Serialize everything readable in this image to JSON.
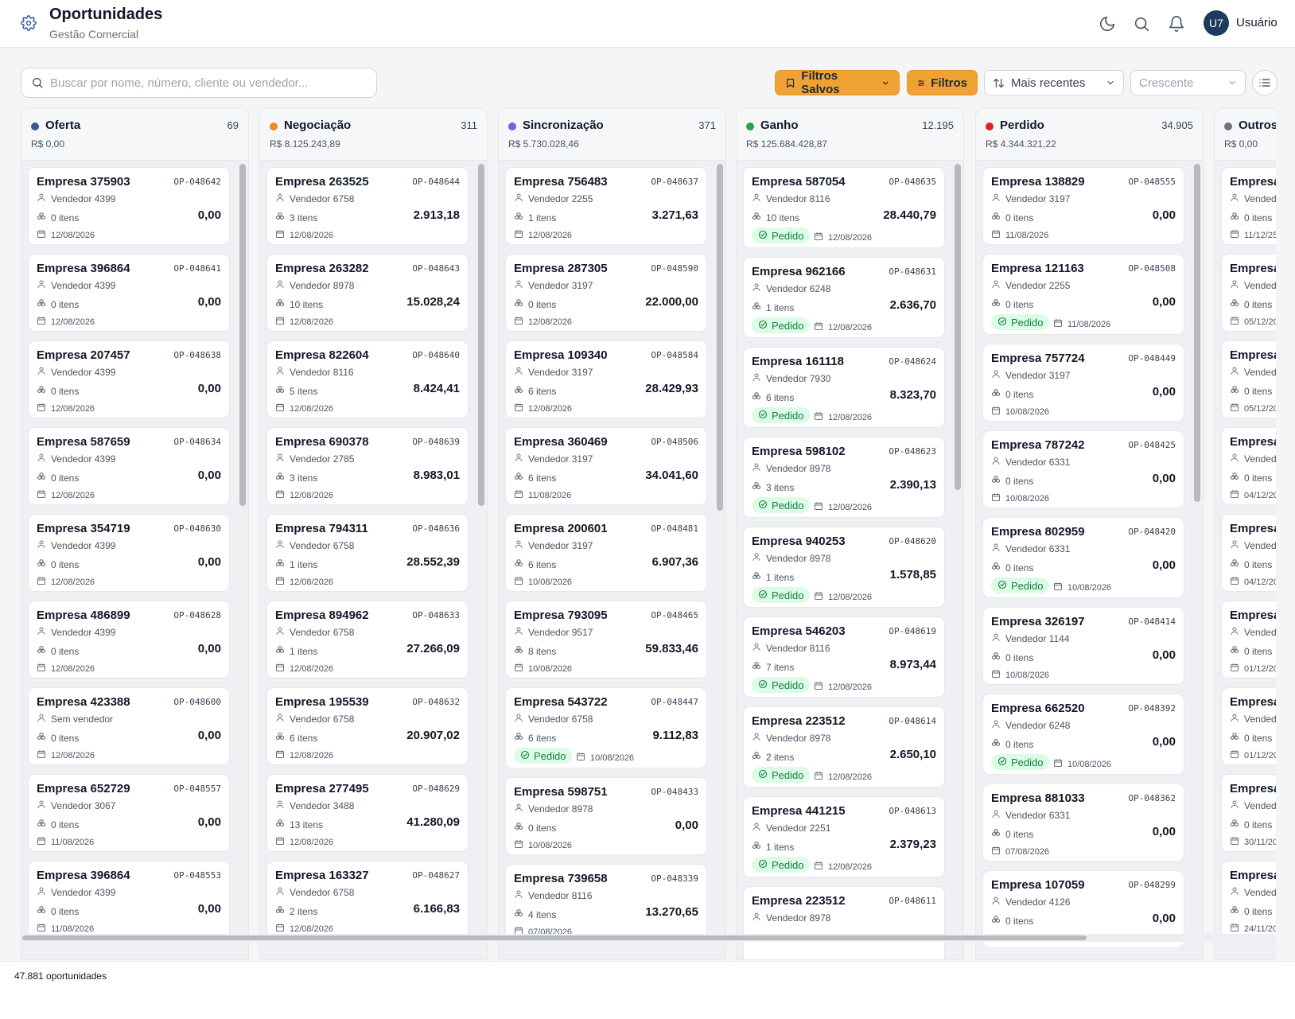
{
  "header": {
    "title": "Oportunidades",
    "subtitle": "Gestão Comercial",
    "user_initials": "U7",
    "user_name": "Usuário"
  },
  "toolbar": {
    "search_placeholder": "Buscar por nome, número, cliente ou vendedor...",
    "saved_filters_label": "Filtros Salvos",
    "filters_label": "Filtros",
    "sort_label": "Mais recentes",
    "order_label": "Crescente"
  },
  "colors": {
    "accent": "#f1a234",
    "badge_bg": "#dcfce7",
    "badge_text": "#15803d"
  },
  "columns": [
    {
      "name": "Oferta",
      "count": "69",
      "total": "R$ 0,00",
      "color": "#3b5b8a",
      "cards": [
        {
          "name": "Empresa 375903",
          "code": "OP-048642",
          "vendor": "Vendedor 4399",
          "items": "0 itens",
          "value": "0,00",
          "date": "12/08/2026"
        },
        {
          "name": "Empresa 396864",
          "code": "OP-048641",
          "vendor": "Vendedor 4399",
          "items": "0 itens",
          "value": "0,00",
          "date": "12/08/2026"
        },
        {
          "name": "Empresa 207457",
          "code": "OP-048638",
          "vendor": "Vendedor 4399",
          "items": "0 itens",
          "value": "0,00",
          "date": "12/08/2026"
        },
        {
          "name": "Empresa 587659",
          "code": "OP-048634",
          "vendor": "Vendedor 4399",
          "items": "0 itens",
          "value": "0,00",
          "date": "12/08/2026"
        },
        {
          "name": "Empresa 354719",
          "code": "OP-048630",
          "vendor": "Vendedor 4399",
          "items": "0 itens",
          "value": "0,00",
          "date": "12/08/2026"
        },
        {
          "name": "Empresa 486899",
          "code": "OP-048628",
          "vendor": "Vendedor 4399",
          "items": "0 itens",
          "value": "0,00",
          "date": "12/08/2026"
        },
        {
          "name": "Empresa 423388",
          "code": "OP-048600",
          "vendor": "Sem vendedor",
          "items": "0 itens",
          "value": "0,00",
          "date": "12/08/2026"
        },
        {
          "name": "Empresa 652729",
          "code": "OP-048557",
          "vendor": "Vendedor 3067",
          "items": "0 itens",
          "value": "0,00",
          "date": "11/08/2026"
        },
        {
          "name": "Empresa 396864",
          "code": "OP-048553",
          "vendor": "Vendedor 4399",
          "items": "0 itens",
          "value": "0,00",
          "date": "11/08/2026"
        }
      ]
    },
    {
      "name": "Negociação",
      "count": "311",
      "total": "R$ 8.125.243,89",
      "color": "#f08a24",
      "cards": [
        {
          "name": "Empresa 263525",
          "code": "OP-048644",
          "vendor": "Vendedor 6758",
          "items": "3 itens",
          "value": "2.913,18",
          "date": "12/08/2026"
        },
        {
          "name": "Empresa 263282",
          "code": "OP-048643",
          "vendor": "Vendedor 8978",
          "items": "10 itens",
          "value": "15.028,24",
          "date": "12/08/2026"
        },
        {
          "name": "Empresa 822604",
          "code": "OP-048640",
          "vendor": "Vendedor 8116",
          "items": "5 itens",
          "value": "8.424,41",
          "date": "12/08/2026"
        },
        {
          "name": "Empresa 690378",
          "code": "OP-048639",
          "vendor": "Vendedor 2785",
          "items": "3 itens",
          "value": "8.983,01",
          "date": "12/08/2026"
        },
        {
          "name": "Empresa 794311",
          "code": "OP-048636",
          "vendor": "Vendedor 6758",
          "items": "1 itens",
          "value": "28.552,39",
          "date": "12/08/2026"
        },
        {
          "name": "Empresa 894962",
          "code": "OP-048633",
          "vendor": "Vendedor 6758",
          "items": "1 itens",
          "value": "27.266,09",
          "date": "12/08/2026"
        },
        {
          "name": "Empresa 195539",
          "code": "OP-048632",
          "vendor": "Vendedor 6758",
          "items": "6 itens",
          "value": "20.907,02",
          "date": "12/08/2026"
        },
        {
          "name": "Empresa 277495",
          "code": "OP-048629",
          "vendor": "Vendedor 3488",
          "items": "13 itens",
          "value": "41.280,09",
          "date": "12/08/2026"
        },
        {
          "name": "Empresa 163327",
          "code": "OP-048627",
          "vendor": "Vendedor 6758",
          "items": "2 itens",
          "value": "6.166,83",
          "date": "12/08/2026"
        }
      ]
    },
    {
      "name": "Sincronização",
      "count": "371",
      "total": "R$ 5.730.028,46",
      "color": "#7c5ce8",
      "cards": [
        {
          "name": "Empresa 756483",
          "code": "OP-048637",
          "vendor": "Vendedor 2255",
          "items": "1 itens",
          "value": "3.271,63",
          "date": "12/08/2026"
        },
        {
          "name": "Empresa 287305",
          "code": "OP-048590",
          "vendor": "Vendedor 3197",
          "items": "0 itens",
          "value": "22.000,00",
          "date": "12/08/2026"
        },
        {
          "name": "Empresa 109340",
          "code": "OP-048584",
          "vendor": "Vendedor 3197",
          "items": "6 itens",
          "value": "28.429,93",
          "date": "12/08/2026"
        },
        {
          "name": "Empresa 360469",
          "code": "OP-048506",
          "vendor": "Vendedor 3197",
          "items": "6 itens",
          "value": "34.041,60",
          "date": "11/08/2026"
        },
        {
          "name": "Empresa 200601",
          "code": "OP-048481",
          "vendor": "Vendedor 3197",
          "items": "6 itens",
          "value": "6.907,36",
          "date": "10/08/2026"
        },
        {
          "name": "Empresa 793095",
          "code": "OP-048465",
          "vendor": "Vendedor 9517",
          "items": "8 itens",
          "value": "59.833,46",
          "date": "10/08/2026"
        },
        {
          "name": "Empresa 543722",
          "code": "OP-048447",
          "vendor": "Vendedor 6758",
          "items": "6 itens",
          "value": "9.112,83",
          "date": "10/08/2026",
          "badge": "Pedido"
        },
        {
          "name": "Empresa 598751",
          "code": "OP-048433",
          "vendor": "Vendedor 8978",
          "items": "0 itens",
          "value": "0,00",
          "date": "10/08/2026"
        },
        {
          "name": "Empresa 739658",
          "code": "OP-048339",
          "vendor": "Vendedor 8116",
          "items": "4 itens",
          "value": "13.270,65",
          "date": "07/08/2026"
        }
      ]
    },
    {
      "name": "Ganho",
      "count": "12.195",
      "total": "R$ 125.684.428,87",
      "color": "#22a745",
      "cards": [
        {
          "name": "Empresa 587054",
          "code": "OP-048635",
          "vendor": "Vendedor 8116",
          "items": "10 itens",
          "value": "28.440,79",
          "date": "12/08/2026",
          "badge": "Pedido"
        },
        {
          "name": "Empresa 962166",
          "code": "OP-048631",
          "vendor": "Vendedor 6248",
          "items": "1 itens",
          "value": "2.636,70",
          "date": "12/08/2026",
          "badge": "Pedido"
        },
        {
          "name": "Empresa 161118",
          "code": "OP-048624",
          "vendor": "Vendedor 7930",
          "items": "6 itens",
          "value": "8.323,70",
          "date": "12/08/2026",
          "badge": "Pedido"
        },
        {
          "name": "Empresa 598102",
          "code": "OP-048623",
          "vendor": "Vendedor 8978",
          "items": "3 itens",
          "value": "2.390,13",
          "date": "12/08/2026",
          "badge": "Pedido"
        },
        {
          "name": "Empresa 940253",
          "code": "OP-048620",
          "vendor": "Vendedor 8978",
          "items": "1 itens",
          "value": "1.578,85",
          "date": "12/08/2026",
          "badge": "Pedido"
        },
        {
          "name": "Empresa 546203",
          "code": "OP-048619",
          "vendor": "Vendedor 8116",
          "items": "7 itens",
          "value": "8.973,44",
          "date": "12/08/2026",
          "badge": "Pedido"
        },
        {
          "name": "Empresa 223512",
          "code": "OP-048614",
          "vendor": "Vendedor 8978",
          "items": "2 itens",
          "value": "2.650,10",
          "date": "12/08/2026",
          "badge": "Pedido"
        },
        {
          "name": "Empresa 441215",
          "code": "OP-048613",
          "vendor": "Vendedor 2251",
          "items": "1 itens",
          "value": "2.379,23",
          "date": "12/08/2026",
          "badge": "Pedido"
        },
        {
          "name": "Empresa 223512",
          "code": "OP-048611",
          "vendor": "Vendedor 8978",
          "items": "",
          "value": "",
          "date": ""
        }
      ]
    },
    {
      "name": "Perdido",
      "count": "34.905",
      "total": "R$ 4.344.321,22",
      "color": "#dc2626",
      "cards": [
        {
          "name": "Empresa 138829",
          "code": "OP-048555",
          "vendor": "Vendedor 3197",
          "items": "0 itens",
          "value": "0,00",
          "date": "11/08/2026"
        },
        {
          "name": "Empresa 121163",
          "code": "OP-048508",
          "vendor": "Vendedor 2255",
          "items": "0 itens",
          "value": "0,00",
          "date": "11/08/2026",
          "badge": "Pedido"
        },
        {
          "name": "Empresa 757724",
          "code": "OP-048449",
          "vendor": "Vendedor 3197",
          "items": "0 itens",
          "value": "0,00",
          "date": "10/08/2026"
        },
        {
          "name": "Empresa 787242",
          "code": "OP-048425",
          "vendor": "Vendedor 6331",
          "items": "0 itens",
          "value": "0,00",
          "date": "10/08/2026"
        },
        {
          "name": "Empresa 802959",
          "code": "OP-048420",
          "vendor": "Vendedor 6331",
          "items": "0 itens",
          "value": "0,00",
          "date": "10/08/2026",
          "badge": "Pedido"
        },
        {
          "name": "Empresa 326197",
          "code": "OP-048414",
          "vendor": "Vendedor 1144",
          "items": "0 itens",
          "value": "0,00",
          "date": "10/08/2026"
        },
        {
          "name": "Empresa 662520",
          "code": "OP-048392",
          "vendor": "Vendedor 6248",
          "items": "0 itens",
          "value": "0,00",
          "date": "10/08/2026",
          "badge": "Pedido"
        },
        {
          "name": "Empresa 881033",
          "code": "OP-048362",
          "vendor": "Vendedor 6331",
          "items": "0 itens",
          "value": "0,00",
          "date": "07/08/2026"
        },
        {
          "name": "Empresa 107059",
          "code": "OP-048299",
          "vendor": "Vendedor 4126",
          "items": "0 itens",
          "value": "0,00",
          "date": ""
        }
      ]
    },
    {
      "name": "Outros",
      "count": "",
      "total": "R$ 0,00",
      "color": "#6b7280",
      "cards": [
        {
          "name": "Empresa",
          "code": "",
          "vendor": "Vendedo",
          "items": "0 itens",
          "value": "",
          "date": "11/12/25"
        },
        {
          "name": "Empresa",
          "code": "",
          "vendor": "Vendedo",
          "items": "0 itens",
          "value": "",
          "date": "05/12/20"
        },
        {
          "name": "Empresa",
          "code": "",
          "vendor": "Vendedo",
          "items": "0 itens",
          "value": "",
          "date": "05/12/20"
        },
        {
          "name": "Empresa",
          "code": "",
          "vendor": "Vendedo",
          "items": "0 itens",
          "value": "",
          "date": "04/12/20"
        },
        {
          "name": "Empresa",
          "code": "",
          "vendor": "Vendedo",
          "items": "0 itens",
          "value": "",
          "date": "04/12/20"
        },
        {
          "name": "Empresa",
          "code": "",
          "vendor": "Vendedo",
          "items": "0 itens",
          "value": "",
          "date": "01/12/20"
        },
        {
          "name": "Empresa",
          "code": "",
          "vendor": "Vendedo",
          "items": "0 itens",
          "value": "",
          "date": "01/12/20"
        },
        {
          "name": "Empresa",
          "code": "",
          "vendor": "Vendedo",
          "items": "0 itens",
          "value": "",
          "date": "30/11/20"
        },
        {
          "name": "Empresa",
          "code": "",
          "vendor": "Vendedo",
          "items": "0 itens",
          "value": "",
          "date": "24/11/20"
        }
      ]
    }
  ],
  "footer": {
    "total_label": "47.881 oportunidades"
  }
}
